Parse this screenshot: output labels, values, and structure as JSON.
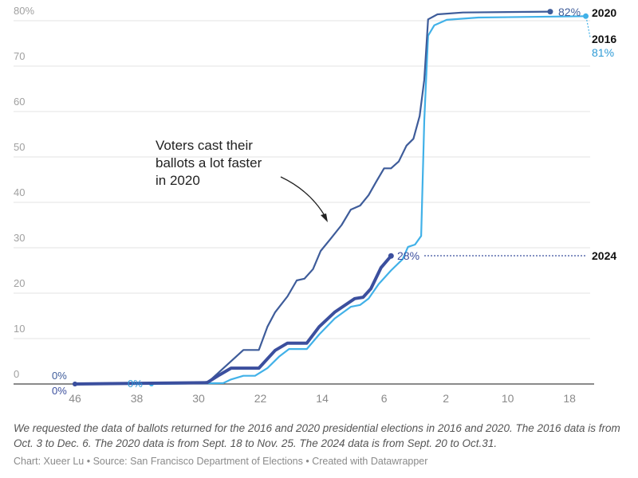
{
  "chart_data": {
    "type": "line",
    "title": "",
    "xlabel": "",
    "ylabel": "",
    "x_ticks": [
      {
        "value": -46,
        "label": "46"
      },
      {
        "value": -38,
        "label": "38"
      },
      {
        "value": -30,
        "label": "30"
      },
      {
        "value": -22,
        "label": "22"
      },
      {
        "value": -14,
        "label": "14"
      },
      {
        "value": -6,
        "label": "6"
      },
      {
        "value": 2,
        "label": "2"
      },
      {
        "value": 10,
        "label": "10"
      },
      {
        "value": 18,
        "label": "18"
      }
    ],
    "y_ticks": [
      {
        "value": 0,
        "label": "0"
      },
      {
        "value": 10,
        "label": "10"
      },
      {
        "value": 20,
        "label": "20"
      },
      {
        "value": 30,
        "label": "30"
      },
      {
        "value": 40,
        "label": "40"
      },
      {
        "value": 50,
        "label": "50"
      },
      {
        "value": 60,
        "label": "60"
      },
      {
        "value": 70,
        "label": "70"
      },
      {
        "value": 80,
        "label": "80%"
      }
    ],
    "ylim": [
      0,
      80
    ],
    "xlim": [
      -46,
      20
    ],
    "grid": true,
    "series": [
      {
        "name": "2020",
        "color": "#3e5c9a",
        "end_label": "82%",
        "start_label": "0%",
        "x": [
          -46,
          -30,
          -28.7,
          -24.2,
          -22.2,
          -21.1,
          -20.1,
          -18.5,
          -17.3,
          -16.3,
          -15.2,
          -14.2,
          -12.9,
          -11.5,
          -10.3,
          -9.1,
          -8,
          -7,
          -6,
          -5.1,
          -4.1,
          -3.1,
          -2.2,
          -1.4,
          -0.8,
          -0.3,
          0.9,
          4.2,
          15.5
        ],
        "y": [
          0,
          0.3,
          0.5,
          7.5,
          7.5,
          12.6,
          15.8,
          19.3,
          22.8,
          23.2,
          25.3,
          29.3,
          32,
          35,
          38.4,
          39.3,
          41.6,
          44.6,
          47.5,
          47.5,
          49,
          52.5,
          54,
          59,
          67,
          80.3,
          81.4,
          81.8,
          82
        ]
      },
      {
        "name": "2016",
        "color": "#41b1e8",
        "end_label": "81%",
        "start_label": "0%",
        "x": [
          -36.1,
          -26.8,
          -25.8,
          -24.2,
          -22.7,
          -21.1,
          -19.6,
          -18.3,
          -16,
          -14.4,
          -12.4,
          -10.3,
          -9.1,
          -8,
          -6.7,
          -5.1,
          -3.6,
          -2.9,
          -2,
          -1.2,
          -0.8,
          -0.3,
          0.5,
          2.1,
          6.2,
          20.1
        ],
        "y": [
          0,
          0.2,
          1,
          1.8,
          1.8,
          3.5,
          6,
          7.7,
          7.7,
          10.9,
          14.4,
          17,
          17.4,
          18.8,
          22,
          25,
          27.5,
          30.2,
          30.7,
          32.6,
          58,
          76.7,
          79,
          80.2,
          80.7,
          81
        ]
      },
      {
        "name": "2024",
        "color": "#3b4f9e",
        "end_label": "28%",
        "start_label": "0%",
        "x": [
          -46,
          -28.9,
          -27.3,
          -25.8,
          -22.2,
          -20.1,
          -18.5,
          -16,
          -14.4,
          -12.4,
          -9.8,
          -8.7,
          -7.7,
          -6.4,
          -5.1
        ],
        "y": [
          0,
          0.3,
          2,
          3.5,
          3.5,
          7.4,
          9,
          9,
          12.6,
          15.8,
          18.8,
          19.1,
          21,
          25.6,
          28.2
        ]
      }
    ],
    "annotation": {
      "lines": [
        "Voters cast their",
        "ballots a lot faster",
        "in 2020"
      ]
    }
  },
  "notes": "We requested the data of ballots returned for the 2016 and 2020 presidential elections in 2016 and 2020. The 2016 data is from Oct. 3 to Dec. 6. The 2020 data is from Sept. 18 to Nov. 25. The 2024 data is from Sept. 20 to Oct.31.",
  "credit": "Chart: Xueer Lu • Source: San Francisco Department of Elections • Created with Datawrapper"
}
